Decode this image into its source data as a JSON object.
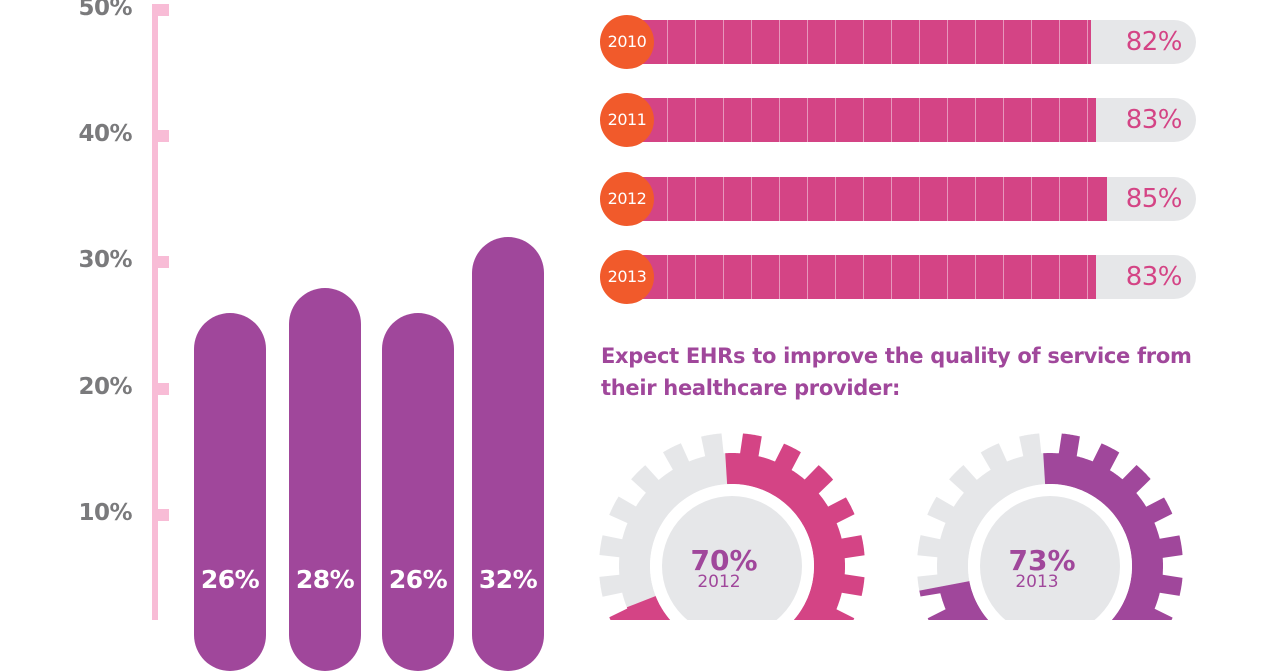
{
  "chart_data": [
    {
      "type": "bar",
      "title": "",
      "xlabel": "",
      "ylabel": "",
      "ylim": [
        0,
        50
      ],
      "y_ticks": [
        "10%",
        "20%",
        "30%",
        "40%",
        "50%"
      ],
      "y_tick_values": [
        10,
        20,
        30,
        40,
        50
      ],
      "values": [
        26,
        28,
        26,
        32
      ],
      "value_labels": [
        "26%",
        "28%",
        "26%",
        "32%"
      ],
      "color": "#a0479b",
      "axis_color": "#f8bcd6"
    },
    {
      "type": "bar",
      "orientation": "horizontal",
      "categories": [
        "2010",
        "2011",
        "2012",
        "2013"
      ],
      "values": [
        82,
        83,
        85,
        83
      ],
      "value_labels": [
        "82%",
        "83%",
        "85%",
        "83%"
      ],
      "xlim": [
        0,
        100
      ],
      "fill_color": "#d44485",
      "track_color": "#e6e7e9",
      "year_badge_color": "#f15a2b"
    },
    {
      "type": "pie",
      "title": "Expect EHRs to improve the quality of service from their healthcare provider:",
      "gauges": [
        {
          "year": "2012",
          "value": 70,
          "label": "70%",
          "color": "#d44485"
        },
        {
          "year": "2013",
          "value": 73,
          "label": "73%",
          "color": "#a0479b"
        }
      ],
      "remainder_color": "#e6e7e9"
    }
  ]
}
